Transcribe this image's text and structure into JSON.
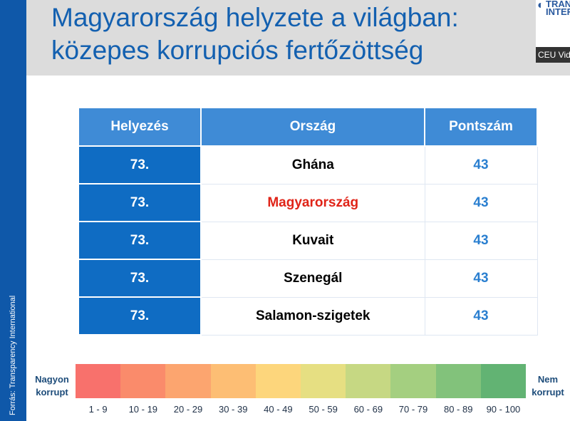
{
  "title": {
    "line1": "Magyarország helyzete a világban:",
    "line2": "közepes korrupciós fertőzöttség"
  },
  "logo": {
    "text": "TRANSPA\nINTERNAT",
    "icon": "globe-icon"
  },
  "video_label": "CEU Vid",
  "source": "Forrás: Transparency International",
  "table": {
    "headers": {
      "rank": "Helyezés",
      "country": "Ország",
      "score": "Pontszám"
    },
    "rows": [
      {
        "rank": "73.",
        "country": "Ghána",
        "score": "43"
      },
      {
        "rank": "73.",
        "country": "Magyarország",
        "score": "43"
      },
      {
        "rank": "73.",
        "country": "Kuvait",
        "score": "43"
      },
      {
        "rank": "73.",
        "country": "Szenegál",
        "score": "43"
      },
      {
        "rank": "73.",
        "country": "Salamon-szigetek",
        "score": "43"
      }
    ],
    "highlight_color": "#e02418",
    "header_color": "#3f8bd6",
    "rank_cell_color": "#0f6cc3",
    "score_color": "#2a7fd0"
  },
  "scale": {
    "left_label": "Nagyon\nkorrupt",
    "right_label": "Nem\nkorrupt",
    "ranges": [
      "1 - 9",
      "10 - 19",
      "20 - 29",
      "30 - 39",
      "40 - 49",
      "50 - 59",
      "60 - 69",
      "70 - 79",
      "80 - 89",
      "90 - 100"
    ],
    "colors": [
      "#f8716c",
      "#fa8b6b",
      "#fca56f",
      "#fdbe74",
      "#fdd67c",
      "#e6df82",
      "#c6d883",
      "#a4cf80",
      "#82c27b",
      "#62b373"
    ]
  }
}
